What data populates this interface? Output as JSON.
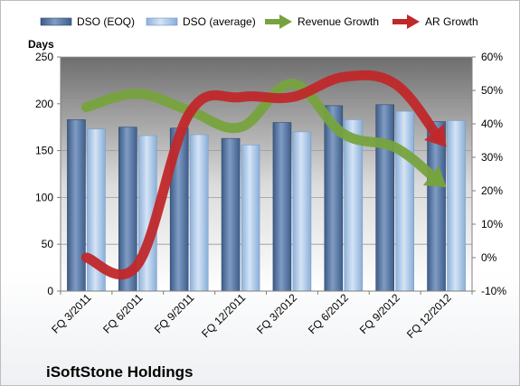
{
  "company_name": "iSoftStone Holdings",
  "chart_data": {
    "type": "bar",
    "categories": [
      "FQ 3/2011",
      "FQ 6/2011",
      "FQ 9/2011",
      "FQ 12/2011",
      "FQ 3/2012",
      "FQ 6/2012",
      "FQ 9/2012",
      "FQ 12/2012"
    ],
    "ylabel": "Days",
    "ylim": [
      0,
      250
    ],
    "y_ticks": [
      0,
      50,
      100,
      150,
      200,
      250
    ],
    "y2lim": [
      -10,
      60
    ],
    "y2_ticks": [
      "-10%",
      "0%",
      "10%",
      "20%",
      "30%",
      "40%",
      "50%",
      "60%"
    ],
    "y2_values": [
      -10,
      0,
      10,
      20,
      30,
      40,
      50,
      60
    ],
    "grid": true,
    "legend_position": "top",
    "series": [
      {
        "name": "DSO (EOQ)",
        "kind": "bar",
        "axis": "left",
        "color": "#4a6c9b",
        "values": [
          183,
          175,
          174,
          163,
          180,
          198,
          199,
          181
        ]
      },
      {
        "name": "DSO (average)",
        "kind": "bar",
        "axis": "left",
        "color": "#a9c6e8",
        "values": [
          173,
          166,
          167,
          156,
          170,
          183,
          192,
          182
        ]
      },
      {
        "name": "Revenue Growth",
        "kind": "arrow-line",
        "axis": "right",
        "color": "#77a33e",
        "values": [
          45,
          49,
          44,
          39,
          52,
          37,
          33,
          21
        ]
      },
      {
        "name": "AR Growth",
        "kind": "arrow-line",
        "axis": "right",
        "color": "#c0282a",
        "values": [
          0,
          -2,
          43,
          48,
          48,
          54,
          52,
          33
        ]
      }
    ]
  }
}
